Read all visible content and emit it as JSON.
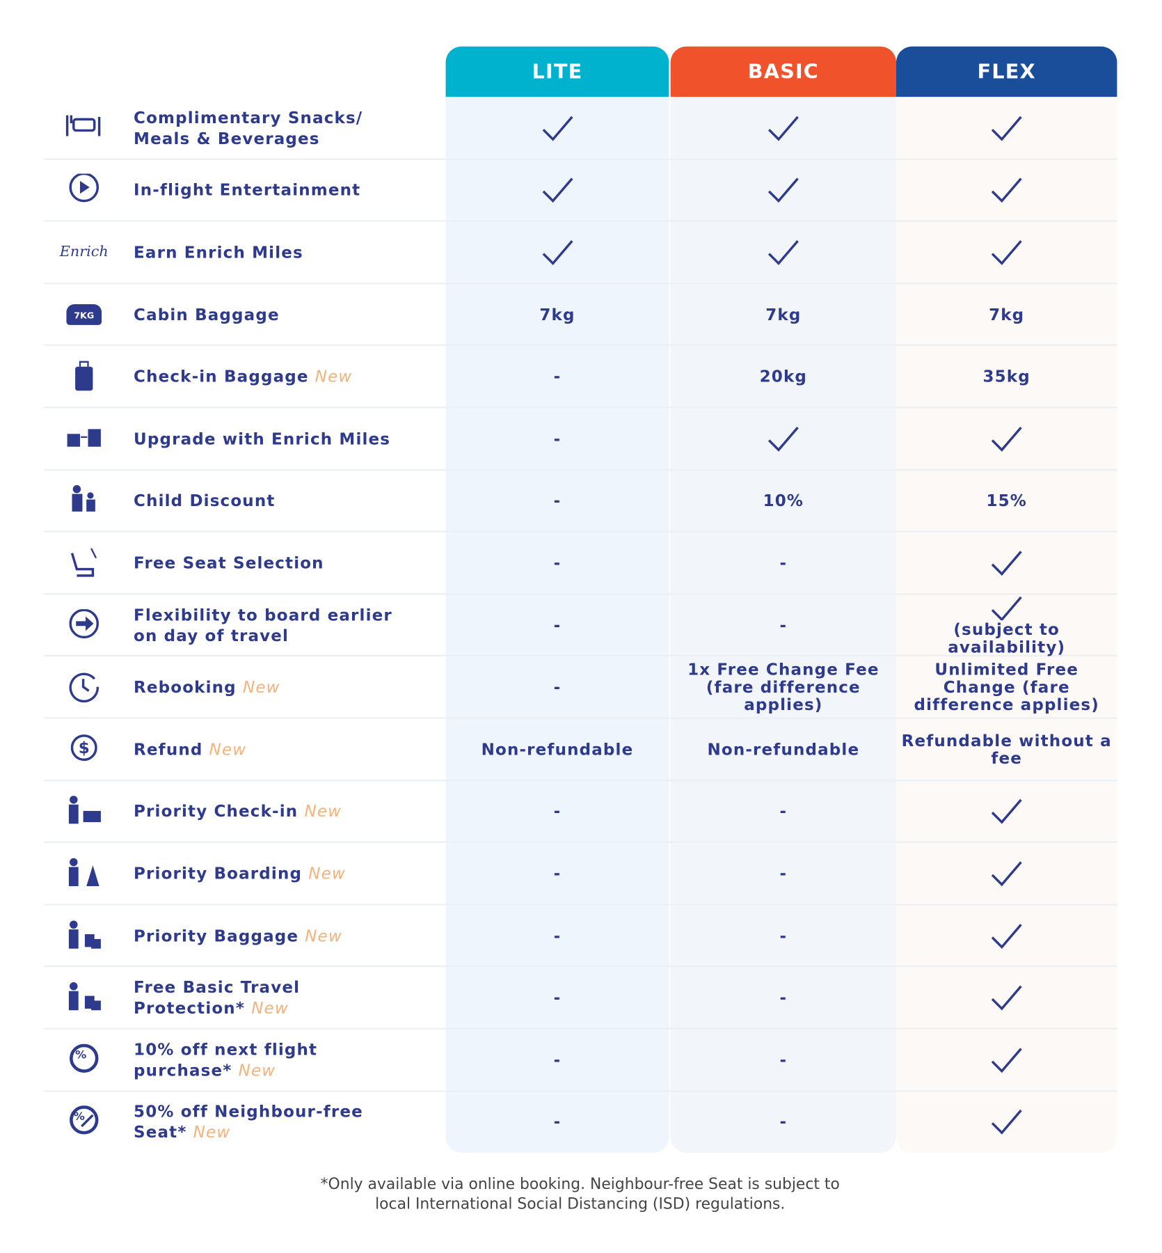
{
  "header": {
    "columns": [
      {
        "name": "LITE",
        "color": "#00b2cd",
        "background": "#eef5fc"
      },
      {
        "name": "BASIC",
        "color": "#f0532b",
        "background": "#f2f6fb"
      },
      {
        "name": "FLEX",
        "color": "#1a4e9b",
        "background": "#fcf9f6"
      }
    ]
  },
  "table": {
    "new_color": "#f5b27a",
    "text_color": "#2e3a8c",
    "rows": [
      {
        "label": "Complimentary Snacks/ Meals & Beverages",
        "cells": [
          true,
          true,
          true
        ]
      },
      {
        "label": "In-flight Entertainment",
        "cells": [
          true,
          true,
          true
        ]
      },
      {
        "label": "Earn Enrich Miles",
        "icon_text": "Enrich",
        "cells": [
          true,
          true,
          true
        ]
      },
      {
        "label": "Cabin Baggage",
        "icon_text": "7KG",
        "cells": [
          "7kg",
          "7kg",
          "7kg"
        ]
      },
      {
        "label": "Check-in Baggage",
        "new": "New",
        "cells": [
          "-",
          "20kg",
          "35kg"
        ]
      },
      {
        "label": "Upgrade with Enrich Miles",
        "cells": [
          "-",
          true,
          true
        ]
      },
      {
        "label": "Child Discount",
        "cells": [
          "-",
          "10%",
          "15%"
        ]
      },
      {
        "label": "Free Seat Selection",
        "cells": [
          "-",
          "-",
          true
        ]
      },
      {
        "label": "Flexibility to board earlier on day of travel",
        "cells": [
          "-",
          "-",
          {
            "check": true,
            "note": "(subject to availability)"
          }
        ]
      },
      {
        "label": "Rebooking",
        "new": "New",
        "cells": [
          "-",
          "1x Free Change Fee (fare difference applies)",
          "Unlimited Free Change (fare difference applies)"
        ]
      },
      {
        "label": "Refund",
        "new": "New",
        "cells": [
          "Non-refundable",
          "Non-refundable",
          "Refundable without a fee"
        ]
      },
      {
        "label": "Priority Check-in",
        "new": "New",
        "cells": [
          "-",
          "-",
          true
        ]
      },
      {
        "label": "Priority Boarding",
        "new": "New",
        "cells": [
          "-",
          "-",
          true
        ]
      },
      {
        "label": "Priority Baggage",
        "new": "New",
        "cells": [
          "-",
          "-",
          true
        ]
      },
      {
        "label": "Free Basic Travel\nProtection*",
        "new": "New",
        "cells": [
          "-",
          "-",
          true
        ]
      },
      {
        "label": "10% off next flight purchase*",
        "new": "New",
        "cells": [
          "-",
          "-",
          true
        ]
      },
      {
        "label": "50% off Neighbour-free Seat*",
        "new": "New",
        "cells": [
          "-",
          "-",
          true
        ]
      }
    ]
  },
  "footnote": {
    "lines": [
      "*Only available via online booking. Neighbour-free Seat is subject to",
      "local International Social Distancing (ISD) regulations."
    ]
  }
}
